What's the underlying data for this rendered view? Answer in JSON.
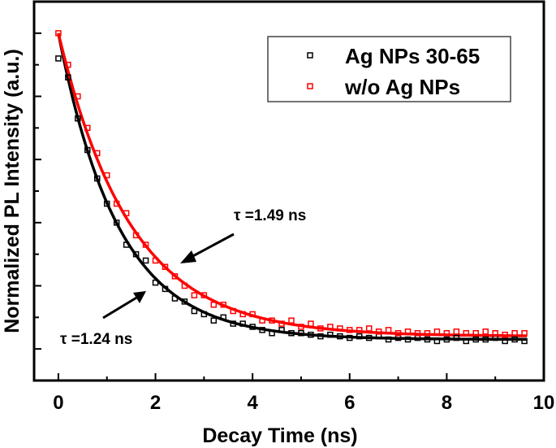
{
  "chart_data": {
    "type": "scatter",
    "title": "",
    "xlabel": "Decay Time (ns)",
    "ylabel": "Normalized PL Intensity (a.u.)",
    "xlim": [
      -0.5,
      10
    ],
    "ylim": [
      -0.1,
      1.1
    ],
    "x_ticks": [
      "0",
      "2",
      "4",
      "6",
      "8",
      "10"
    ],
    "y_tick_labels_shown": false,
    "grid": false,
    "legend_position": "top-right",
    "series": [
      {
        "name": "Ag NPs 30-65",
        "color": "#000000",
        "marker": "open-square",
        "x": [
          0,
          0.2,
          0.4,
          0.6,
          0.8,
          1.0,
          1.2,
          1.4,
          1.6,
          1.8,
          2.0,
          2.2,
          2.4,
          2.6,
          2.8,
          3.0,
          3.2,
          3.4,
          3.6,
          3.8,
          4.0,
          4.2,
          4.4,
          4.6,
          4.8,
          5.0,
          5.2,
          5.4,
          5.6,
          5.8,
          6.0,
          6.2,
          6.4,
          6.6,
          6.8,
          7.0,
          7.2,
          7.4,
          7.6,
          7.8,
          8.0,
          8.2,
          8.4,
          8.6,
          8.8,
          9.0,
          9.2,
          9.4,
          9.6
        ],
        "y": [
          0.92,
          0.86,
          0.73,
          0.63,
          0.54,
          0.46,
          0.4,
          0.33,
          0.3,
          0.28,
          0.21,
          0.19,
          0.16,
          0.15,
          0.12,
          0.11,
          0.09,
          0.1,
          0.08,
          0.08,
          0.07,
          0.06,
          0.05,
          0.06,
          0.05,
          0.05,
          0.045,
          0.04,
          0.045,
          0.04,
          0.035,
          0.04,
          0.035,
          0.04,
          0.03,
          0.035,
          0.03,
          0.035,
          0.03,
          0.025,
          0.03,
          0.035,
          0.025,
          0.03,
          0.03,
          0.035,
          0.025,
          0.03,
          0.025
        ],
        "fit": {
          "tau": 1.24,
          "amplitude": 0.97,
          "offset": 0.03
        }
      },
      {
        "name": "w/o Ag NPs",
        "color": "#ff0000",
        "marker": "open-square",
        "x": [
          0,
          0.2,
          0.4,
          0.6,
          0.8,
          1.0,
          1.2,
          1.4,
          1.6,
          1.8,
          2.0,
          2.2,
          2.4,
          2.6,
          2.8,
          3.0,
          3.2,
          3.4,
          3.6,
          3.8,
          4.0,
          4.2,
          4.4,
          4.6,
          4.8,
          5.0,
          5.2,
          5.4,
          5.6,
          5.8,
          6.0,
          6.2,
          6.4,
          6.6,
          6.8,
          7.0,
          7.2,
          7.4,
          7.6,
          7.8,
          8.0,
          8.2,
          8.4,
          8.6,
          8.8,
          9.0,
          9.2,
          9.4,
          9.6
        ],
        "y": [
          1.0,
          0.9,
          0.8,
          0.7,
          0.62,
          0.55,
          0.46,
          0.43,
          0.36,
          0.33,
          0.28,
          0.26,
          0.23,
          0.2,
          0.17,
          0.17,
          0.14,
          0.14,
          0.12,
          0.11,
          0.11,
          0.09,
          0.09,
          0.08,
          0.09,
          0.07,
          0.08,
          0.065,
          0.07,
          0.065,
          0.06,
          0.06,
          0.065,
          0.055,
          0.06,
          0.05,
          0.055,
          0.05,
          0.05,
          0.055,
          0.05,
          0.055,
          0.05,
          0.05,
          0.055,
          0.05,
          0.045,
          0.05,
          0.05
        ],
        "fit": {
          "tau": 1.49,
          "amplitude": 0.96,
          "offset": 0.04
        }
      }
    ],
    "annotations": [
      {
        "text": "τ =1.49 ns",
        "target_series": "w/o Ag NPs"
      },
      {
        "text": "τ =1.24 ns",
        "target_series": "Ag NPs 30-65"
      }
    ]
  }
}
